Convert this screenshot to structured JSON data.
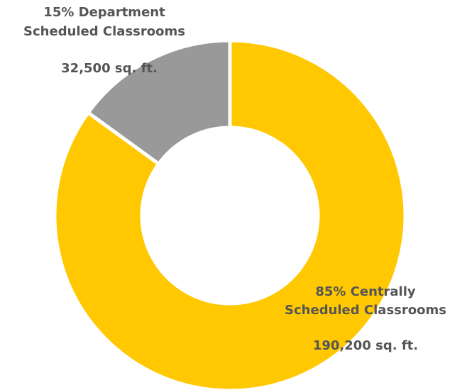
{
  "chart_data": {
    "type": "donut",
    "labels": [
      [
        "85% Centrally",
        "Scheduled Classrooms"
      ],
      [
        "15% Department",
        "Scheduled Classrooms"
      ]
    ],
    "values": [
      85,
      15
    ],
    "sublabels": [
      "190,200 sq. ft.",
      "32,500 sq. ft."
    ],
    "colors": [
      "#ffc800",
      "#999999"
    ]
  }
}
